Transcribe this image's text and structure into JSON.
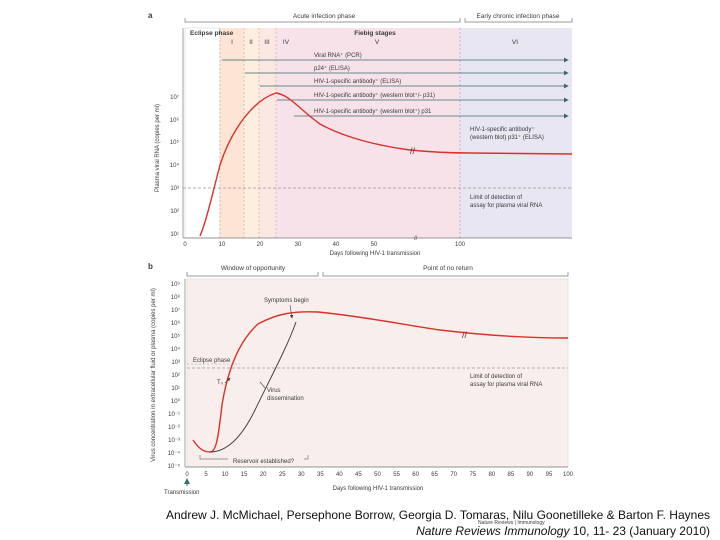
{
  "caption": {
    "authors": "Andrew J. McMichael, Persephone Borrow, Georgia D. Tomaras, Nilu Goonetilleke & Barton F. Haynes",
    "journal": "Nature Reviews Immunology",
    "citation": " 10, 11- 23 (January 2010)",
    "logo_text": "Nature Reviews | Immunology"
  },
  "panel_a": {
    "label": "a",
    "top_labels": {
      "acute": "Acute infection phase",
      "chronic": "Early chronic infection phase",
      "eclipse": "Eclipse phase",
      "fiebig": "Fiebig stages",
      "stages": [
        "I",
        "II",
        "III",
        "IV",
        "V",
        "VI"
      ]
    },
    "marker_arrows": [
      "Viral RNA⁺ (PCR)",
      "p24⁺ (ELISA)",
      "HIV-1-specific antibody⁺ (ELISA)",
      "HIV-1-specific antibody⁺ (western blot⁺/- p31)",
      "HIV-1-specific antibody⁺ (western blot⁺) p31"
    ],
    "right_note": [
      "HIV-1-specific antibody⁺",
      "(western blot) p31⁺ (ELISA)"
    ],
    "detection_note": [
      "Limit of detection of",
      "assay for plasma viral RNA"
    ],
    "ylabel": "Plasma viral RNA (copies per ml)",
    "xlabel": "Days following HIV-1 transmission",
    "xticks": [
      "0",
      "10",
      "20",
      "30",
      "40",
      "50",
      "100"
    ],
    "yticks": [
      "10⁷",
      "10⁶",
      "10⁵",
      "10⁴",
      "10³",
      "10²",
      "10¹"
    ]
  },
  "panel_b": {
    "label": "b",
    "window_label": "Window of opportunity",
    "noreturn_label": "Point of no return",
    "ylabel": "Virus concentration in extracellular fluid or plasma (copies per ml)",
    "xlabel": "Days following HIV-1 transmission",
    "transmission_label": "Transmission",
    "yticks": [
      "10⁹",
      "10⁸",
      "10⁷",
      "10⁶",
      "10⁵",
      "10⁴",
      "10³",
      "10²",
      "10¹",
      "10⁰",
      "10⁻¹",
      "10⁻²",
      "10⁻³",
      "10⁻⁴",
      "10⁻⁵"
    ],
    "xticks": [
      "0",
      "5",
      "10",
      "15",
      "20",
      "25",
      "30",
      "35",
      "40",
      "45",
      "50",
      "55",
      "60",
      "65",
      "70",
      "75",
      "80",
      "85",
      "90",
      "95",
      "100"
    ],
    "annotations": {
      "symptoms": "Symptoms begin",
      "eclipse": "Eclipse phase",
      "t0": "T₀",
      "dissemination": [
        "Virus",
        "dissemination"
      ],
      "reservoir": "Reservoir established?",
      "detection": [
        "Limit of detection of",
        "assay for plasma viral RNA"
      ]
    }
  },
  "colors": {
    "curve": "#d9322a",
    "eclipse_fill": "#fde4d4",
    "acute_fill": "#f7e2ea",
    "chronic_fill": "#e7e6f2",
    "panel_b_fill": "#f8efec",
    "arrow": "#3b6a6a"
  }
}
